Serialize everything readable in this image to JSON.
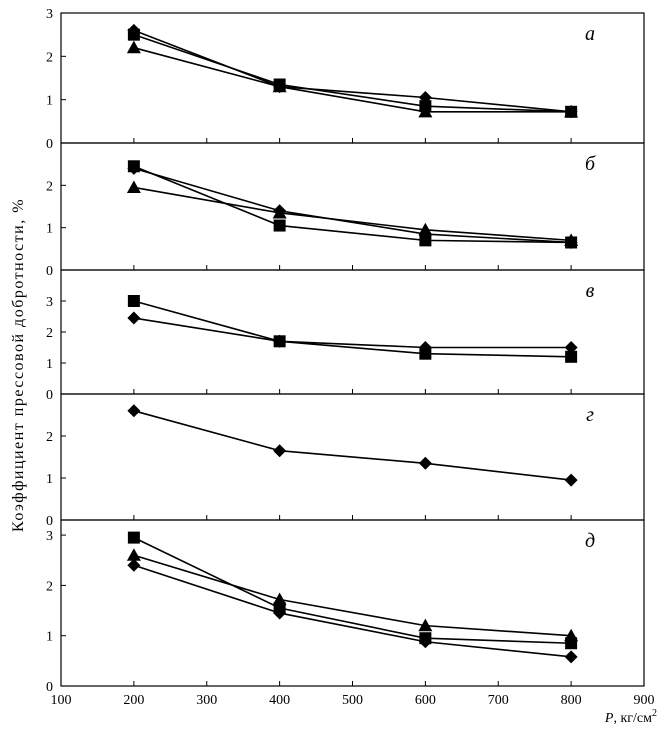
{
  "chart_data": {
    "type": "line",
    "ylabel": "Коэффициент  прессовой  добротности, %",
    "xlabel": {
      "var": "P",
      "rest": ", кг/см",
      "sup": "2"
    },
    "x_axis": {
      "min": 100,
      "max": 900,
      "ticks": [
        "100",
        "200",
        "300",
        "400",
        "500",
        "600",
        "700",
        "800",
        "900"
      ]
    },
    "x": [
      200,
      400,
      600,
      800
    ],
    "panels": [
      {
        "label": "а",
        "ylim": [
          0,
          3
        ],
        "yticks": [
          "0",
          "1",
          "2",
          "3"
        ],
        "series": [
          {
            "marker": "diamond",
            "values": [
              2.6,
              1.3,
              1.05,
              0.72
            ]
          },
          {
            "marker": "square",
            "values": [
              2.5,
              1.35,
              0.85,
              0.72
            ]
          },
          {
            "marker": "triangle",
            "values": [
              2.2,
              1.3,
              0.72,
              0.72
            ]
          }
        ]
      },
      {
        "label": "б",
        "ylim": [
          0,
          3
        ],
        "yticks": [
          "0",
          "1",
          "2"
        ],
        "series": [
          {
            "marker": "diamond",
            "values": [
              2.4,
              1.4,
              0.85,
              0.65
            ]
          },
          {
            "marker": "square",
            "values": [
              2.45,
              1.05,
              0.7,
              0.65
            ]
          },
          {
            "marker": "triangle",
            "values": [
              1.95,
              1.35,
              0.95,
              0.7
            ]
          }
        ]
      },
      {
        "label": "в",
        "ylim": [
          0,
          4
        ],
        "yticks": [
          "0",
          "1",
          "2",
          "3"
        ],
        "series": [
          {
            "marker": "diamond",
            "values": [
              2.45,
              1.7,
              1.5,
              1.5
            ]
          },
          {
            "marker": "square",
            "values": [
              3.0,
              1.7,
              1.3,
              1.2
            ]
          }
        ]
      },
      {
        "label": "г",
        "ylim": [
          0,
          3
        ],
        "yticks": [
          "0",
          "1",
          "2"
        ],
        "series": [
          {
            "marker": "diamond",
            "values": [
              2.6,
              1.65,
              1.35,
              0.95
            ]
          }
        ]
      },
      {
        "label": "д",
        "ylim": [
          0,
          3.3
        ],
        "yticks": [
          "0",
          "1",
          "2",
          "3"
        ],
        "series": [
          {
            "marker": "diamond",
            "values": [
              2.4,
              1.45,
              0.88,
              0.58
            ]
          },
          {
            "marker": "square",
            "values": [
              2.95,
              1.55,
              0.95,
              0.85
            ]
          },
          {
            "marker": "triangle",
            "values": [
              2.6,
              1.72,
              1.2,
              1.0
            ]
          }
        ]
      }
    ]
  }
}
